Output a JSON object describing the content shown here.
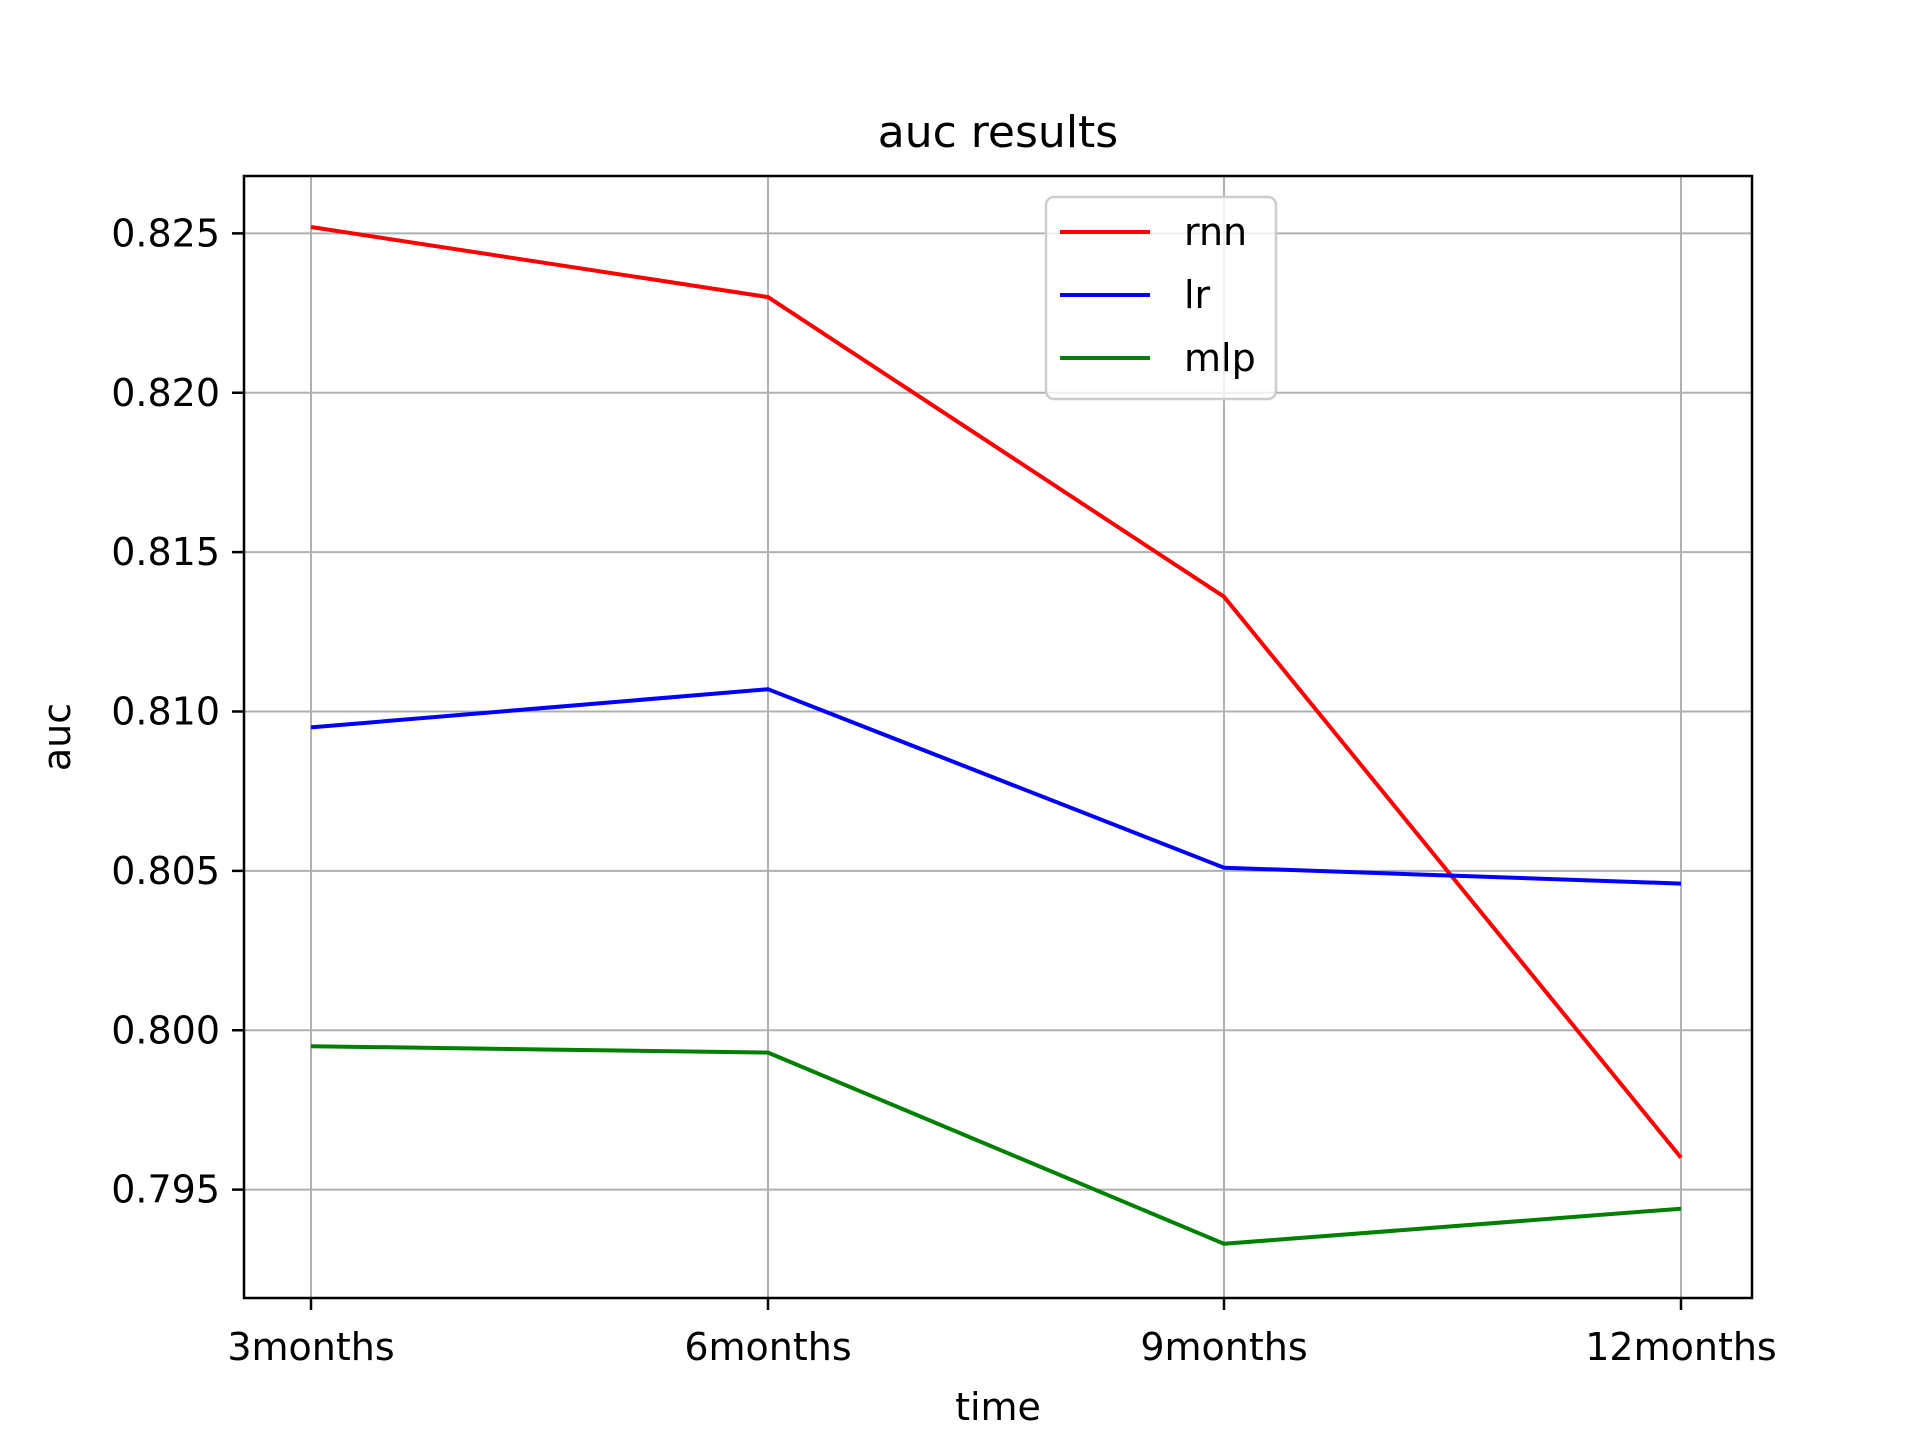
{
  "chart_data": {
    "type": "line",
    "title": "auc results",
    "xlabel": "time",
    "ylabel": "auc",
    "categories": [
      "3months",
      "6months",
      "9months",
      "12months"
    ],
    "ylim": [
      0.7916,
      0.8268
    ],
    "yticks": [
      0.795,
      0.8,
      0.805,
      0.81,
      0.815,
      0.82,
      0.825
    ],
    "ytick_labels": [
      "0.795",
      "0.800",
      "0.805",
      "0.810",
      "0.815",
      "0.820",
      "0.825"
    ],
    "grid": true,
    "legend_position": "upper-center",
    "series": [
      {
        "name": "rnn",
        "color": "#ff0000",
        "values": [
          0.8252,
          0.823,
          0.8136,
          0.796
        ]
      },
      {
        "name": "lr",
        "color": "#0000ff",
        "values": [
          0.8095,
          0.8107,
          0.8051,
          0.8046
        ]
      },
      {
        "name": "mlp",
        "color": "#008000",
        "values": [
          0.7995,
          0.7993,
          0.7933,
          0.7944
        ]
      }
    ]
  }
}
